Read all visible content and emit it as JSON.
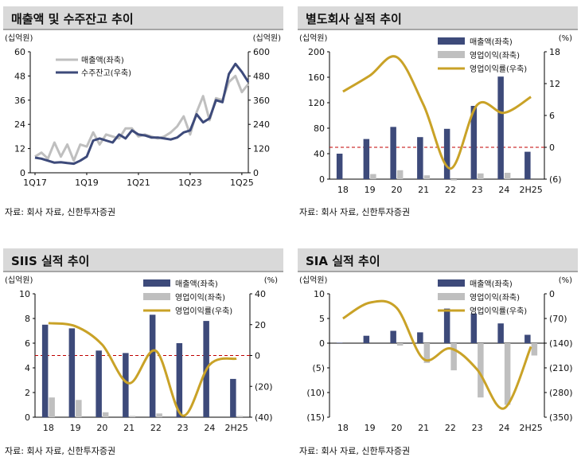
{
  "panels": [
    {
      "title": "매출액 및 수주잔고 추이",
      "source": "자료: 회사 자료, 신한투자증권",
      "chart_data": {
        "type": "line",
        "left_unit": "(십억원)",
        "right_unit": "(십억원)",
        "x_ticks": [
          "1Q17",
          "1Q19",
          "1Q21",
          "1Q23",
          "1Q25"
        ],
        "x_tick_index": [
          0,
          8,
          16,
          24,
          32
        ],
        "ylim_left": [
          0,
          60
        ],
        "yticks_left": [
          0,
          12,
          24,
          36,
          48,
          60
        ],
        "ylim_right": [
          0,
          600
        ],
        "yticks_right": [
          0,
          120,
          240,
          360,
          480,
          600
        ],
        "series": [
          {
            "name": "매출액(좌축)",
            "axis": "left",
            "color": "#bfbfbf",
            "values": [
              8,
              10,
              7,
              15,
              8,
              14,
              6,
              14,
              13,
              20,
              14,
              19,
              18,
              17,
              22,
              22,
              18,
              19,
              18,
              17,
              18,
              20,
              23,
              28,
              19,
              30,
              38,
              26,
              37,
              36,
              45,
              48,
              40,
              44
            ]
          },
          {
            "name": "수주잔고(우축)",
            "axis": "right",
            "color": "#3d4a7a",
            "values": [
              75,
              70,
              60,
              50,
              52,
              48,
              45,
              60,
              80,
              160,
              170,
              160,
              150,
              190,
              170,
              210,
              190,
              185,
              175,
              175,
              170,
              165,
              175,
              200,
              210,
              290,
              250,
              270,
              360,
              350,
              490,
              540,
              500,
              450
            ]
          }
        ]
      }
    },
    {
      "title": "별도회사 실적 추이",
      "source": "자료: 회사 자료, 신한투자증권",
      "chart_data": {
        "type": "bar",
        "left_unit": "(십억원)",
        "right_unit": "(%)",
        "categories": [
          "18",
          "19",
          "20",
          "21",
          "22",
          "23",
          "24",
          "2H25"
        ],
        "ylim_left": [
          0,
          200
        ],
        "yticks_left": [
          0,
          40,
          80,
          120,
          160,
          200
        ],
        "yticklabels_left": [
          "0",
          "40",
          "80",
          "120",
          "160",
          "200"
        ],
        "ylim_right": [
          -6,
          18
        ],
        "yticks_right": [
          -6,
          0,
          6,
          12,
          18
        ],
        "yticklabels_right": [
          "(6)",
          "0",
          "6",
          "12",
          "18"
        ],
        "ref_line_right": 0,
        "series": [
          {
            "name": "매출액(좌축)",
            "type": "bar",
            "axis": "left",
            "color": "#3d4a7a",
            "values": [
              40,
              63,
              82,
              66,
              79,
              115,
              161,
              43
            ]
          },
          {
            "name": "영업이익(좌축)",
            "type": "bar",
            "axis": "left",
            "color": "#bfbfbf",
            "values": [
              0,
              8,
              14,
              6,
              -2,
              9,
              10,
              0
            ]
          },
          {
            "name": "영업이익률(우축)",
            "type": "line",
            "axis": "right",
            "color": "#c9a227",
            "values": [
              10.5,
              13.5,
              17,
              8,
              -4,
              8,
              6.5,
              9.5
            ]
          }
        ]
      }
    },
    {
      "title": "SIIS 실적 추이",
      "source": "자료: 회사 자료, 신한투자증권",
      "chart_data": {
        "type": "bar",
        "left_unit": "(십억원)",
        "right_unit": "(%)",
        "categories": [
          "18",
          "19",
          "20",
          "21",
          "22",
          "23",
          "24",
          "2H25"
        ],
        "ylim_left": [
          0,
          10
        ],
        "yticks_left": [
          0,
          2,
          4,
          6,
          8,
          10
        ],
        "yticklabels_left": [
          "0",
          "2",
          "4",
          "6",
          "8",
          "10"
        ],
        "ylim_right": [
          -40,
          40
        ],
        "yticks_right": [
          -40,
          -20,
          0,
          20,
          40
        ],
        "yticklabels_right": [
          "(40)",
          "(20)",
          "0",
          "20",
          "40"
        ],
        "ref_line_right": 0,
        "series": [
          {
            "name": "매출액(좌축)",
            "type": "bar",
            "axis": "left",
            "color": "#3d4a7a",
            "values": [
              7.5,
              7.2,
              5.4,
              5.2,
              8.3,
              6.0,
              7.8,
              3.1
            ]
          },
          {
            "name": "영업이익(좌축)",
            "type": "bar",
            "axis": "left",
            "color": "#bfbfbf",
            "values": [
              1.6,
              1.4,
              0.4,
              0.1,
              0.3,
              0.0,
              0.0,
              0.1
            ]
          },
          {
            "name": "영업이익률(우축)",
            "type": "line",
            "axis": "right",
            "color": "#c9a227",
            "values": [
              21,
              19,
              7,
              -18,
              3,
              -39,
              -6,
              -2
            ]
          }
        ]
      }
    },
    {
      "title": "SIA 실적 추이",
      "source": "자료: 회사 자료, 신한투자증권",
      "chart_data": {
        "type": "bar",
        "left_unit": "(십억원)",
        "right_unit": "(%)",
        "categories": [
          "18",
          "19",
          "20",
          "21",
          "22",
          "23",
          "24",
          "2H25"
        ],
        "ylim_left": [
          -15,
          10
        ],
        "yticks_left": [
          -15,
          -10,
          -5,
          0,
          5,
          10
        ],
        "yticklabels_left": [
          "(15)",
          "(10)",
          "(5)",
          "0",
          "5",
          "10"
        ],
        "ylim_right": [
          -350,
          0
        ],
        "yticks_right": [
          -350,
          -280,
          -210,
          -140,
          -70,
          0
        ],
        "yticklabels_right": [
          "(350)",
          "(280)",
          "(210)",
          "(140)",
          "(70)",
          "0"
        ],
        "ref_line_left": 0,
        "series": [
          {
            "name": "매출액(좌축)",
            "type": "bar",
            "axis": "left",
            "color": "#3d4a7a",
            "values": [
              0.1,
              1.5,
              2.5,
              2.2,
              7.0,
              6.0,
              4.0,
              1.7
            ]
          },
          {
            "name": "영업이익(좌축)",
            "type": "bar",
            "axis": "left",
            "color": "#bfbfbf",
            "values": [
              0,
              0,
              -0.5,
              -4.0,
              -5.5,
              -11.0,
              -12.5,
              -2.5
            ]
          },
          {
            "name": "영업이익률(우축)",
            "type": "line",
            "axis": "right",
            "color": "#c9a227",
            "values": [
              -70,
              -25,
              -40,
              -185,
              -155,
              -215,
              -325,
              -150
            ]
          }
        ]
      }
    }
  ]
}
